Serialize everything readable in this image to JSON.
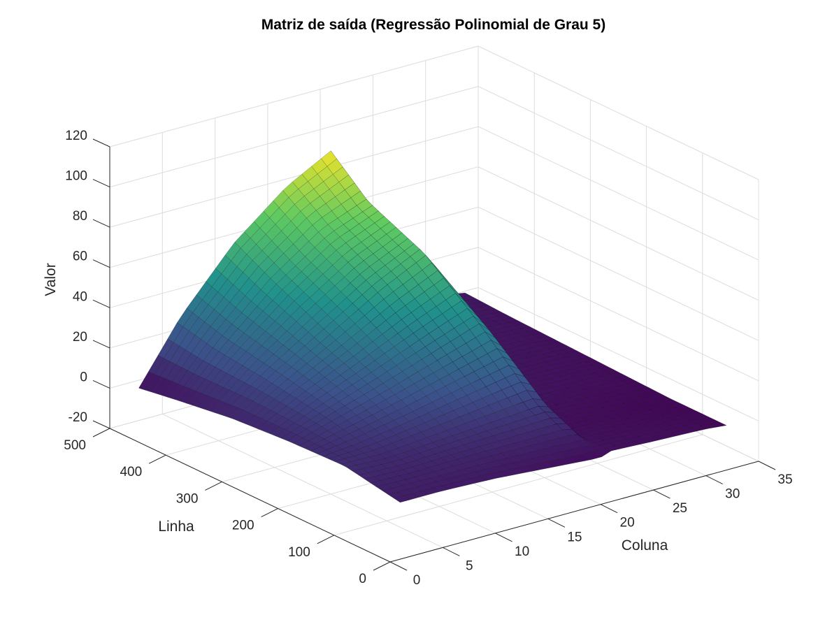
{
  "chart_data": {
    "type": "surface",
    "title": "Matriz de saída (Regressão Polinomial de Grau 5)",
    "xlabel": "Coluna",
    "ylabel": "Linha",
    "zlabel": "Valor",
    "xlim": [
      0,
      35
    ],
    "ylim": [
      0,
      500
    ],
    "zlim": [
      -20,
      120
    ],
    "xticks": [
      0,
      5,
      10,
      15,
      20,
      25,
      30,
      35
    ],
    "yticks": [
      0,
      100,
      200,
      300,
      400,
      500
    ],
    "zticks": [
      -20,
      0,
      20,
      40,
      60,
      80,
      100,
      120
    ],
    "grid": true,
    "colormap": "viridis",
    "surface_x_range": [
      1,
      32
    ],
    "surface_y_range": [
      1,
      467
    ],
    "surface_z_range": [
      0,
      97
    ],
    "surface_samples": {
      "columns": [
        1,
        5,
        10,
        15,
        20,
        21,
        25,
        30,
        32
      ],
      "rows": [
        1,
        100,
        200,
        300,
        400,
        467
      ],
      "z": [
        [
          8,
          8,
          7,
          5,
          3,
          5,
          4,
          3,
          2
        ],
        [
          13,
          12,
          14,
          16,
          18,
          4,
          3,
          2,
          2
        ],
        [
          12,
          19,
          27,
          36,
          45,
          6,
          5,
          4,
          3
        ],
        [
          10,
          24,
          39,
          55,
          68,
          8,
          6,
          5,
          4
        ],
        [
          6,
          28,
          52,
          70,
          80,
          10,
          8,
          6,
          5
        ],
        [
          3,
          33,
          62,
          83,
          97,
          12,
          10,
          8,
          6
        ]
      ]
    }
  },
  "colors": {
    "low": "#440154",
    "mid": "#21918c",
    "high": "#fde725",
    "grid": "#dcdcdc",
    "axis": "#262626"
  }
}
